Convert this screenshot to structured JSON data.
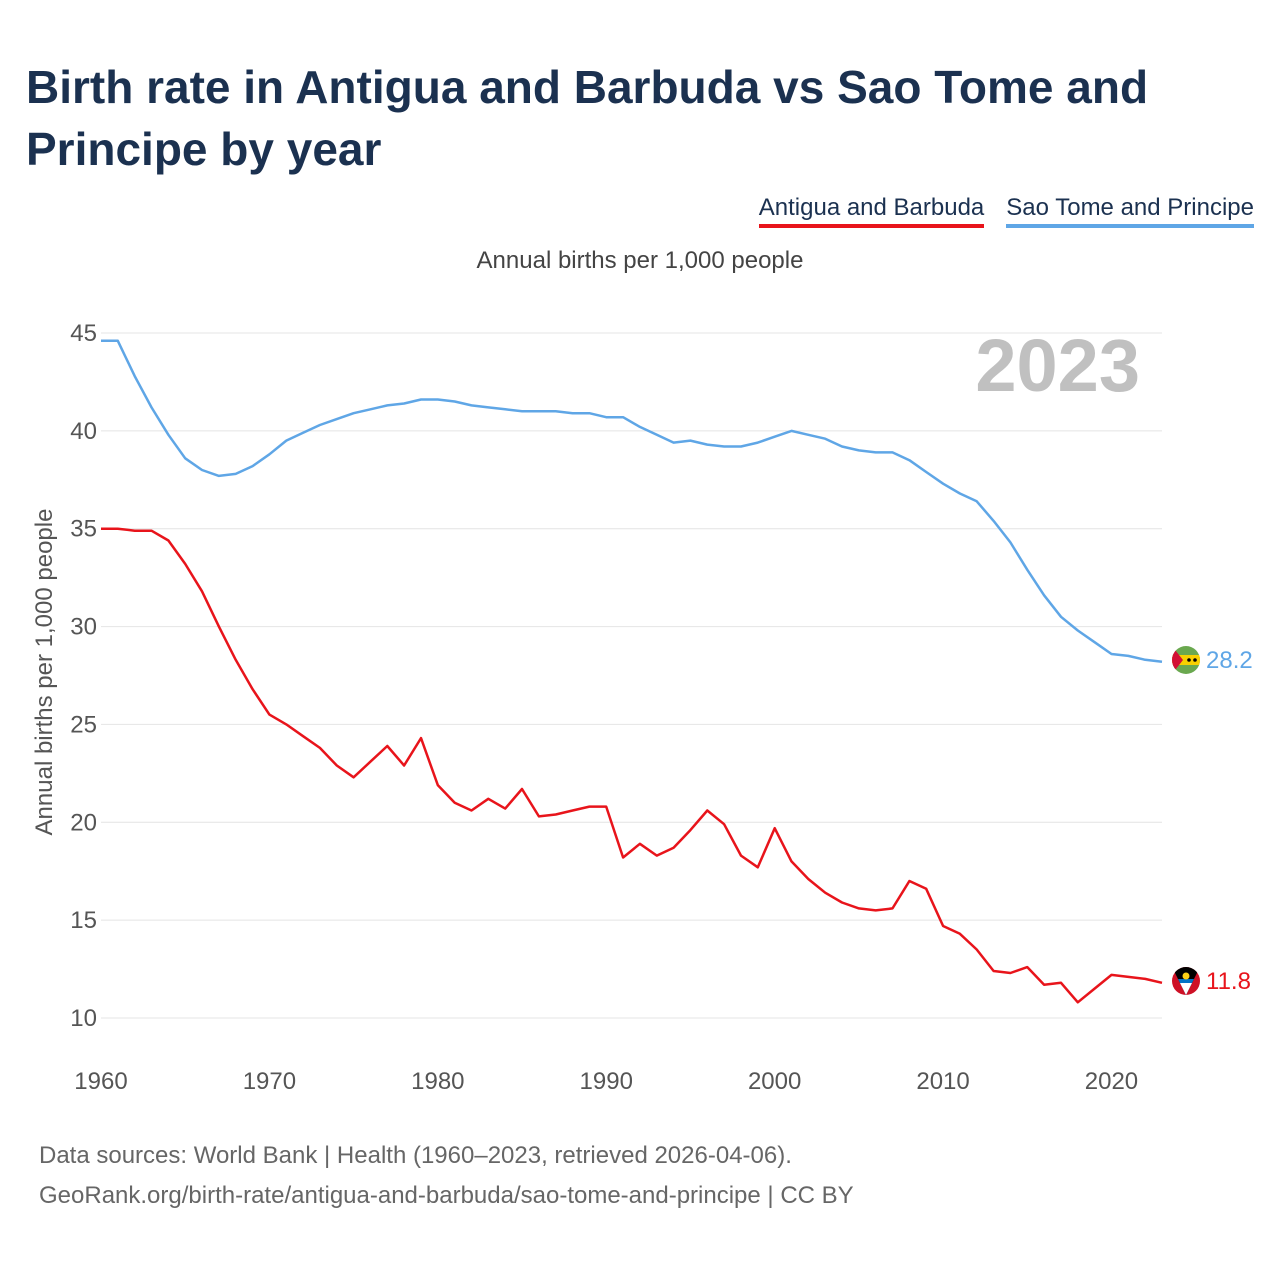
{
  "title": "Birth rate in Antigua and Barbuda vs Sao Tome and Principe by year",
  "legend": [
    "Antigua and Barbuda",
    "Sao Tome and Principe"
  ],
  "subtitle": "Annual births per 1,000 people",
  "year_label": "2023",
  "footer": {
    "line1": "Data sources: World Bank | Health (1960–2023, retrieved 2026-04-06).",
    "line2": "GeoRank.org/birth-rate/antigua-and-barbuda/sao-tome-and-principe | CC BY"
  },
  "colors": {
    "antigua": "#e8141b",
    "sao_tome": "#5fa6e6",
    "grid": "#e4e4e4"
  },
  "chart_data": {
    "type": "line",
    "title": "Birth rate in Antigua and Barbuda vs Sao Tome and Principe by year",
    "xlabel": "",
    "ylabel": "Annual births per 1,000 people",
    "xlim": [
      1960,
      2023
    ],
    "ylim": [
      10,
      45
    ],
    "xticks": [
      1960,
      1970,
      1980,
      1990,
      2000,
      2010,
      2020
    ],
    "yticks": [
      10,
      15,
      20,
      25,
      30,
      35,
      40,
      45
    ],
    "x": [
      1960,
      1961,
      1962,
      1963,
      1964,
      1965,
      1966,
      1967,
      1968,
      1969,
      1970,
      1971,
      1972,
      1973,
      1974,
      1975,
      1976,
      1977,
      1978,
      1979,
      1980,
      1981,
      1982,
      1983,
      1984,
      1985,
      1986,
      1987,
      1988,
      1989,
      1990,
      1991,
      1992,
      1993,
      1994,
      1995,
      1996,
      1997,
      1998,
      1999,
      2000,
      2001,
      2002,
      2003,
      2004,
      2005,
      2006,
      2007,
      2008,
      2009,
      2010,
      2011,
      2012,
      2013,
      2014,
      2015,
      2016,
      2017,
      2018,
      2019,
      2020,
      2021,
      2022,
      2023
    ],
    "series": [
      {
        "name": "Antigua and Barbuda",
        "end_label": "11.8",
        "values": [
          35.0,
          35.0,
          34.9,
          34.9,
          34.4,
          33.2,
          31.8,
          30.0,
          28.3,
          26.8,
          25.5,
          25.0,
          24.4,
          23.8,
          22.9,
          22.3,
          23.1,
          23.9,
          22.9,
          24.3,
          21.9,
          21.0,
          20.6,
          21.2,
          20.7,
          21.7,
          20.3,
          20.4,
          20.6,
          20.8,
          20.8,
          18.2,
          18.9,
          18.3,
          18.7,
          19.6,
          20.6,
          19.9,
          18.3,
          17.7,
          19.7,
          18.0,
          17.1,
          16.4,
          15.9,
          15.6,
          15.5,
          15.6,
          17.0,
          16.6,
          14.7,
          14.3,
          13.5,
          12.4,
          12.3,
          12.6,
          11.7,
          11.8,
          10.8,
          11.5,
          12.2,
          12.1,
          12.0,
          11.8
        ]
      },
      {
        "name": "Sao Tome and Principe",
        "end_label": "28.2",
        "values": [
          44.6,
          44.6,
          42.8,
          41.2,
          39.8,
          38.6,
          38.0,
          37.7,
          37.8,
          38.2,
          38.8,
          39.5,
          39.9,
          40.3,
          40.6,
          40.9,
          41.1,
          41.3,
          41.4,
          41.6,
          41.6,
          41.5,
          41.3,
          41.2,
          41.1,
          41.0,
          41.0,
          41.0,
          40.9,
          40.9,
          40.7,
          40.7,
          40.2,
          39.8,
          39.4,
          39.5,
          39.3,
          39.2,
          39.2,
          39.4,
          39.7,
          40.0,
          39.8,
          39.6,
          39.2,
          39.0,
          38.9,
          38.9,
          38.5,
          37.9,
          37.3,
          36.8,
          36.4,
          35.4,
          34.3,
          32.9,
          31.6,
          30.5,
          29.8,
          29.2,
          28.6,
          28.5,
          28.3,
          28.2
        ]
      }
    ]
  }
}
